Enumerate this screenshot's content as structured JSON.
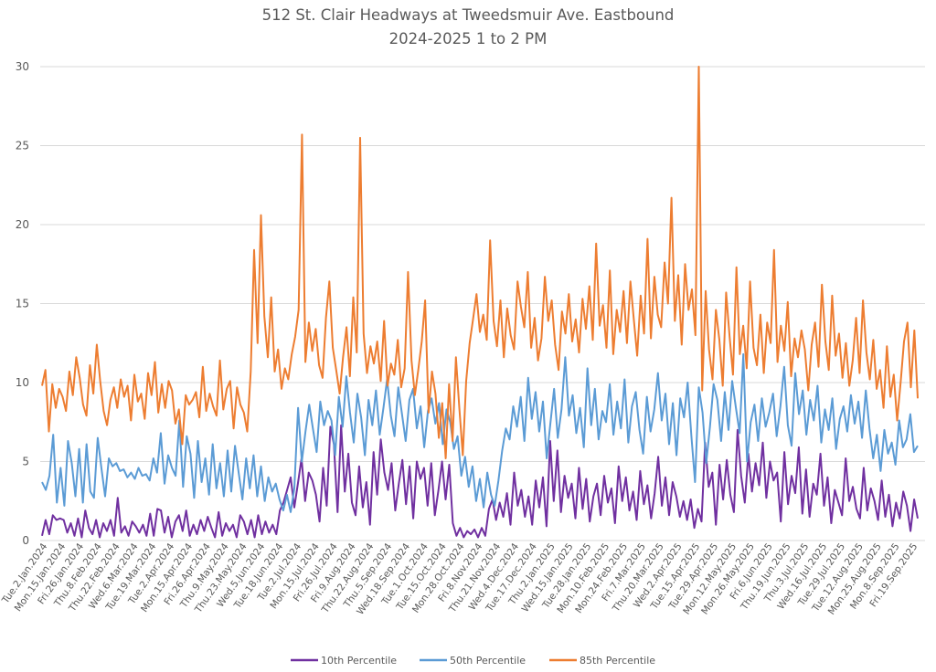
{
  "chart_data": {
    "type": "line",
    "title": "512 St. Clair Headways at Tweedsmuir Ave. Eastbound",
    "subtitle": "2024-2025 1 to 2 PM",
    "xlabel": "",
    "ylabel": "",
    "ylim": [
      0,
      30
    ],
    "yticks": [
      "0",
      "5",
      "10",
      "15",
      "20",
      "25",
      "30"
    ],
    "grid": true,
    "legend_position": "bottom",
    "xtick_labels": [
      "Tue.2.Jan.2024",
      "Mon.15.Jan.2024",
      "Fri.26.Jan.2024",
      "Thu.8.Feb.2024",
      "Thu.22.Feb.2024",
      "Wed.6.Mar.2024",
      "Tue.19.Mar.2024",
      "Tue.2.Apr.2024",
      "Mon.15.Apr.2024",
      "Fri.26.Apr.2024",
      "Thu.9.May.2024",
      "Thu.23.May.2024",
      "Wed.5.Jun.2024",
      "Tue.18.Jun.2024",
      "Tue.2.Jul.2024",
      "Mon.15.Jul.2024",
      "Fri.26.Jul.2024",
      "Fri.9.Aug.2024",
      "Thu.22.Aug.2024",
      "Thu.5.Sep.2024",
      "Wed.18.Sep.2024",
      "Tue.1.Oct.2024",
      "Tue.15.Oct.2024",
      "Mon.28.Oct.2024",
      "Fri.8.Nov.2024",
      "Thu.21.Nov.2024",
      "Wed.4.Dec.2024",
      "Tue.17.Dec.2024",
      "Thu.2.Jan.2025",
      "Wed.15.Jan.2025",
      "Tue.28.Jan.2025",
      "Mon.10.Feb.2025",
      "Mon.24.Feb.2025",
      "Fri.7.Mar.2025",
      "Thu.20.Mar.2025",
      "Wed.2.Apr.2025",
      "Tue.15.Apr.2025",
      "Tue.29.Apr.2025",
      "Mon.12.May.2025",
      "Mon.26.May.2025",
      "Fri.6.Jun.2025",
      "Thu.19.Jun.2025",
      "Thu.3.Jul.2025",
      "Wed.16.Jul.2025",
      "Tue.29.Jul.2025",
      "Tue.12.Aug.2025",
      "Mon.25.Aug.2025",
      "Mon.8.Sep.2025",
      "Fri.19.Sep.2025"
    ],
    "series": [
      {
        "name": "10th Percentile",
        "color": "#7030a0",
        "values": [
          0.3,
          1.3,
          0.4,
          1.6,
          1.3,
          1.4,
          1.3,
          0.5,
          1.1,
          0.3,
          1.4,
          0.2,
          1.9,
          0.8,
          0.4,
          1.3,
          0.2,
          1.1,
          0.6,
          1.3,
          0.3,
          2.7,
          0.5,
          0.9,
          0.3,
          1.2,
          0.9,
          0.5,
          1.0,
          0.3,
          1.7,
          0.3,
          2.0,
          1.9,
          0.5,
          1.5,
          0.2,
          1.2,
          1.6,
          0.6,
          1.9,
          0.3,
          1.0,
          0.4,
          1.3,
          0.6,
          1.5,
          0.8,
          0.2,
          1.8,
          0.3,
          1.1,
          0.6,
          1.0,
          0.2,
          1.6,
          1.2,
          0.4,
          1.3,
          0.2,
          1.6,
          0.4,
          1.2,
          0.5,
          1.0,
          0.4,
          1.9,
          2.4,
          3.2,
          4.0,
          2.1,
          3.6,
          5.2,
          2.5,
          4.3,
          3.8,
          2.9,
          1.2,
          4.6,
          2.2,
          7.2,
          6.1,
          1.8,
          7.3,
          3.1,
          5.5,
          2.4,
          1.6,
          4.7,
          2.1,
          3.7,
          1.0,
          5.6,
          2.9,
          6.4,
          4.3,
          3.2,
          4.9,
          1.9,
          3.6,
          5.1,
          2.3,
          4.7,
          1.4,
          5.0,
          3.9,
          4.6,
          2.2,
          4.9,
          1.6,
          3.2,
          5.0,
          2.6,
          4.8,
          1.1,
          0.3,
          0.8,
          0.2,
          0.6,
          0.4,
          0.7,
          0.2,
          0.8,
          0.3,
          2.0,
          2.6,
          1.3,
          2.4,
          1.5,
          3.0,
          1.0,
          4.3,
          2.2,
          3.2,
          1.5,
          2.8,
          1.0,
          3.8,
          2.1,
          4.0,
          0.9,
          6.3,
          2.5,
          5.7,
          1.8,
          4.1,
          2.7,
          3.6,
          1.4,
          4.6,
          2.0,
          3.9,
          1.2,
          2.8,
          3.6,
          1.6,
          4.1,
          2.4,
          3.3,
          1.1,
          4.7,
          2.5,
          4.0,
          1.9,
          3.1,
          1.3,
          4.4,
          2.3,
          3.5,
          1.4,
          3.0,
          5.3,
          2.2,
          4.0,
          1.6,
          3.7,
          2.8,
          1.5,
          2.5,
          1.3,
          2.6,
          0.8,
          2.0,
          1.2,
          6.2,
          3.4,
          4.3,
          1.0,
          4.8,
          2.6,
          5.1,
          2.9,
          1.8,
          7.0,
          4.1,
          2.4,
          5.5,
          3.1,
          4.9,
          3.5,
          6.2,
          2.7,
          5.0,
          3.8,
          4.3,
          1.2,
          5.6,
          2.3,
          4.1,
          3.0,
          5.9,
          1.7,
          4.5,
          1.5,
          3.6,
          2.9,
          5.5,
          2.2,
          4.0,
          1.1,
          3.2,
          2.4,
          1.6,
          5.2,
          2.5,
          3.4,
          2.0,
          1.4,
          4.6,
          1.9,
          3.3,
          2.5,
          1.3,
          3.8,
          1.5,
          2.9,
          0.9,
          2.4,
          1.4,
          3.1,
          2.2,
          0.6,
          2.6,
          1.4
        ]
      },
      {
        "name": "50th Percentile",
        "color": "#5b9bd5",
        "values": [
          3.7,
          3.2,
          4.1,
          6.7,
          2.4,
          4.6,
          2.2,
          6.3,
          4.9,
          2.8,
          5.8,
          2.4,
          6.1,
          3.1,
          2.7,
          6.5,
          4.6,
          2.8,
          5.2,
          4.7,
          4.9,
          4.4,
          4.5,
          4.0,
          4.3,
          3.9,
          4.6,
          4.1,
          4.2,
          3.8,
          5.2,
          4.3,
          6.8,
          3.6,
          5.4,
          4.6,
          4.1,
          7.6,
          3.4,
          6.6,
          5.5,
          2.7,
          6.3,
          3.7,
          5.2,
          2.9,
          6.1,
          3.3,
          4.9,
          2.8,
          5.7,
          3.1,
          6.0,
          4.3,
          2.6,
          5.2,
          3.3,
          5.4,
          2.8,
          4.7,
          2.5,
          4.0,
          3.1,
          3.6,
          2.6,
          1.9,
          2.9,
          1.8,
          3.3,
          8.4,
          5.0,
          6.9,
          8.6,
          7.1,
          5.6,
          8.8,
          7.3,
          8.2,
          7.6,
          5.4,
          9.1,
          7.2,
          10.4,
          8.1,
          6.2,
          9.3,
          7.8,
          5.4,
          8.9,
          7.3,
          9.5,
          6.7,
          8.4,
          10.2,
          7.9,
          6.6,
          9.7,
          8.0,
          6.3,
          8.9,
          9.6,
          7.1,
          8.5,
          5.9,
          8.2,
          9.0,
          7.4,
          8.7,
          6.1,
          8.3,
          7.5,
          5.8,
          6.6,
          4.1,
          5.3,
          3.4,
          4.7,
          2.5,
          3.9,
          2.1,
          4.3,
          2.9,
          2.2,
          3.8,
          5.7,
          7.1,
          6.4,
          8.5,
          7.2,
          9.1,
          6.3,
          10.3,
          7.7,
          9.4,
          6.9,
          8.8,
          5.2,
          7.4,
          9.6,
          6.5,
          8.3,
          11.6,
          7.9,
          9.2,
          6.8,
          8.4,
          5.9,
          10.9,
          7.3,
          9.6,
          6.4,
          8.2,
          7.5,
          9.9,
          6.7,
          8.8,
          7.1,
          10.2,
          6.2,
          8.5,
          9.4,
          7.0,
          5.5,
          9.1,
          6.9,
          8.3,
          10.6,
          7.6,
          9.3,
          6.1,
          8.7,
          5.4,
          9.0,
          7.8,
          10.0,
          6.6,
          3.7,
          9.7,
          8.1,
          4.9,
          7.2,
          9.9,
          8.9,
          6.3,
          9.4,
          7.0,
          10.1,
          8.4,
          6.8,
          11.8,
          5.0,
          7.5,
          8.6,
          6.3,
          9.0,
          7.2,
          8.1,
          9.3,
          6.6,
          8.5,
          11.0,
          7.3,
          6.0,
          10.6,
          8.0,
          9.5,
          6.7,
          8.9,
          7.6,
          9.8,
          6.2,
          8.3,
          7.0,
          9.0,
          5.8,
          7.7,
          8.5,
          6.9,
          9.2,
          7.4,
          8.8,
          6.5,
          9.5,
          7.1,
          5.2,
          6.7,
          4.4,
          7.0,
          5.5,
          6.2,
          4.8,
          7.6,
          5.9,
          6.4,
          8.0,
          5.6,
          6.0
        ]
      },
      {
        "name": "85th Percentile",
        "color": "#ed7d31",
        "values": [
          9.8,
          10.8,
          6.9,
          9.9,
          8.4,
          9.6,
          9.1,
          8.2,
          10.7,
          9.2,
          11.6,
          10.3,
          8.6,
          7.9,
          11.1,
          9.3,
          12.4,
          10.1,
          8.2,
          7.3,
          8.9,
          9.7,
          8.4,
          10.2,
          9.1,
          9.8,
          7.6,
          10.5,
          8.8,
          9.3,
          7.7,
          10.6,
          9.2,
          11.3,
          8.1,
          9.9,
          8.4,
          10.1,
          9.5,
          7.4,
          8.3,
          6.1,
          9.2,
          8.6,
          8.9,
          9.4,
          7.8,
          11.0,
          8.2,
          9.3,
          8.5,
          7.9,
          11.4,
          8.3,
          9.6,
          10.1,
          7.1,
          9.7,
          8.6,
          8.1,
          6.9,
          10.7,
          18.4,
          12.5,
          20.6,
          14.2,
          11.6,
          15.4,
          10.7,
          12.1,
          9.6,
          10.9,
          10.2,
          11.8,
          12.9,
          14.6,
          25.7,
          11.3,
          13.8,
          12.0,
          13.4,
          11.1,
          10.3,
          14.1,
          16.4,
          12.2,
          10.8,
          9.3,
          11.6,
          13.5,
          10.4,
          15.4,
          11.9,
          25.5,
          13.1,
          10.6,
          12.3,
          11.2,
          12.6,
          10.1,
          13.9,
          9.8,
          11.2,
          10.5,
          12.7,
          9.7,
          10.9,
          17.0,
          11.4,
          9.2,
          10.8,
          12.6,
          15.2,
          8.1,
          10.7,
          9.3,
          6.5,
          8.7,
          5.2,
          9.9,
          6.3,
          11.6,
          8.4,
          5.4,
          10.1,
          12.5,
          14.0,
          15.6,
          13.2,
          14.3,
          12.7,
          19.0,
          13.9,
          12.3,
          15.2,
          11.6,
          14.7,
          13.0,
          12.1,
          16.4,
          14.8,
          13.5,
          17.0,
          12.2,
          14.1,
          11.4,
          12.8,
          16.7,
          13.9,
          15.2,
          12.4,
          10.8,
          14.5,
          13.1,
          15.6,
          12.6,
          14.0,
          11.9,
          15.3,
          13.4,
          16.1,
          12.7,
          18.8,
          13.6,
          14.9,
          12.2,
          17.1,
          11.8,
          14.6,
          13.2,
          15.8,
          12.5,
          16.4,
          14.0,
          11.7,
          15.5,
          13.1,
          19.1,
          12.8,
          16.7,
          14.3,
          13.5,
          17.6,
          15.0,
          21.7,
          13.9,
          16.8,
          12.4,
          17.5,
          14.6,
          15.9,
          13.0,
          30,
          9.5,
          15.8,
          12.1,
          10.2,
          14.6,
          12.7,
          9.8,
          15.7,
          12.9,
          10.5,
          17.3,
          11.8,
          13.6,
          10.9,
          16.4,
          12.2,
          11.1,
          14.3,
          10.6,
          13.8,
          12.5,
          18.4,
          11.3,
          13.6,
          12.0,
          15.1,
          10.4,
          12.8,
          11.6,
          13.3,
          12.1,
          9.5,
          12.4,
          13.8,
          11.0,
          16.2,
          12.6,
          10.8,
          15.5,
          11.7,
          13.1,
          10.3,
          12.5,
          9.8,
          11.4,
          14.1,
          10.6,
          15.2,
          11.9,
          10.2,
          12.7,
          9.6,
          10.8,
          8.4,
          12.3,
          9.1,
          10.5,
          7.6,
          10.0,
          12.6,
          13.8,
          9.7,
          13.3,
          9.0
        ]
      }
    ]
  }
}
